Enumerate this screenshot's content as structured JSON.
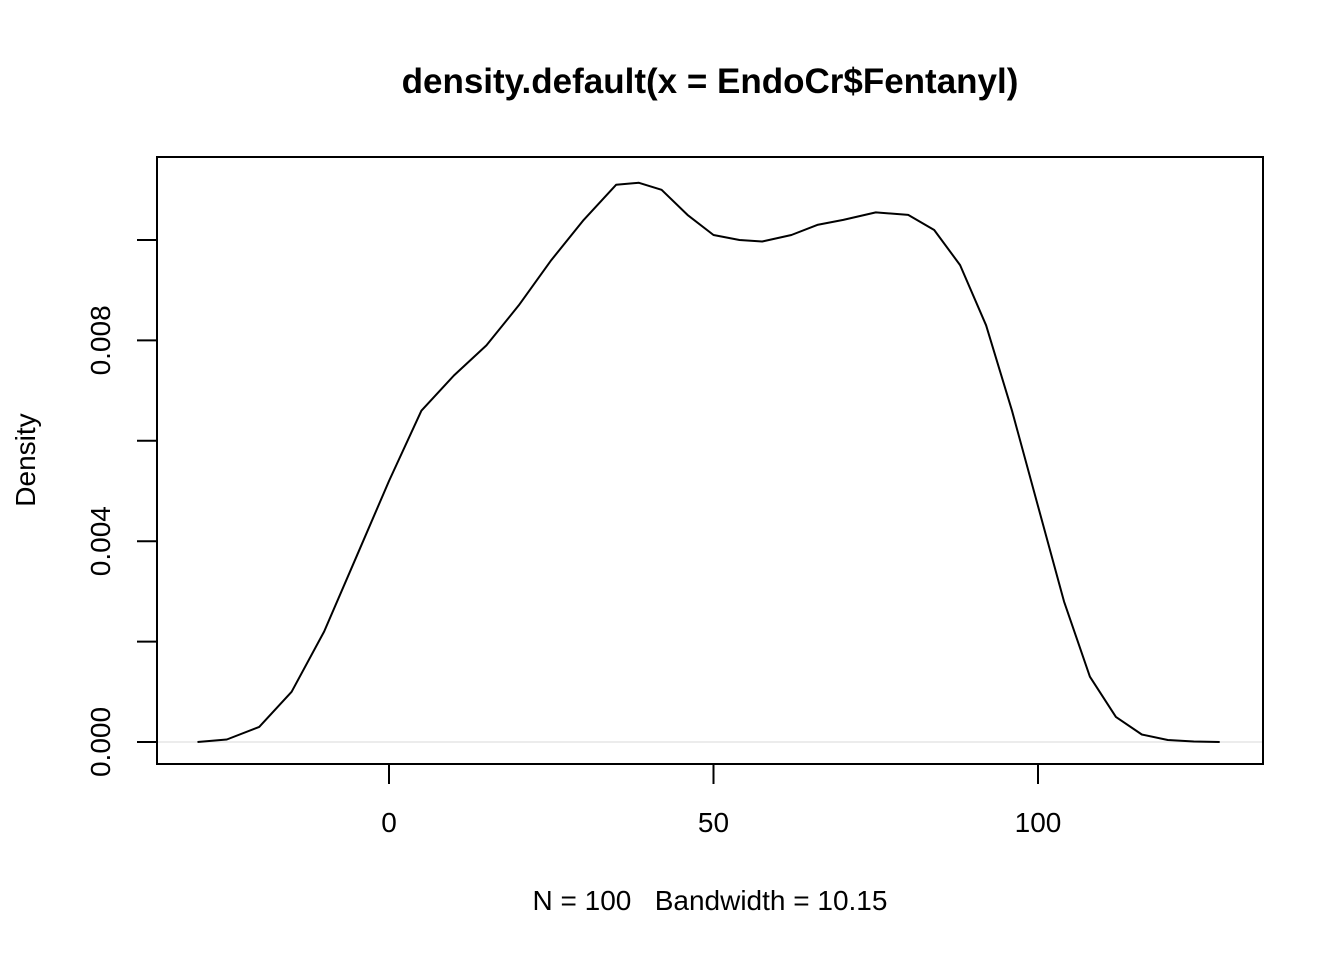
{
  "chart_data": {
    "type": "line",
    "title": "density.default(x = EndoCr$Fentanyl)",
    "xlabel": "N = 100   Bandwidth = 10.15",
    "ylabel": "Density",
    "xlim": [
      -30,
      130
    ],
    "ylim": [
      0.0,
      0.0102
    ],
    "x_ticks": [
      0,
      50,
      100
    ],
    "x_tick_labels": [
      "0",
      "50",
      "100"
    ],
    "y_ticks": [
      0.0,
      0.002,
      0.004,
      0.006,
      0.008,
      0.01
    ],
    "y_tick_labels": [
      "0.000",
      "",
      "0.004",
      "",
      "0.008",
      ""
    ],
    "grid": false,
    "zero_line": true,
    "series": [
      {
        "x": [
          -29.5,
          -25,
          -20,
          -15,
          -10,
          -5,
          0,
          5,
          10,
          15,
          20,
          25,
          30,
          35,
          38.5,
          42,
          46,
          50,
          54,
          57.5,
          62,
          66,
          70,
          75,
          80,
          84,
          88,
          92,
          96,
          100,
          104,
          108,
          112,
          116,
          120,
          124,
          128
        ],
        "y": [
          0.0,
          5e-05,
          0.0003,
          0.001,
          0.0022,
          0.0037,
          0.0052,
          0.0066,
          0.0073,
          0.0079,
          0.0087,
          0.0096,
          0.0104,
          0.0111,
          0.01114,
          0.011,
          0.0105,
          0.0101,
          0.01,
          0.00997,
          0.0101,
          0.0103,
          0.0104,
          0.01055,
          0.0105,
          0.0102,
          0.0095,
          0.0083,
          0.0066,
          0.0047,
          0.0028,
          0.0013,
          0.0005,
          0.00015,
          4e-05,
          1e-05,
          0.0
        ]
      }
    ],
    "colors": {
      "curve": "#000000",
      "zero_line": "#e6e6e6"
    }
  }
}
